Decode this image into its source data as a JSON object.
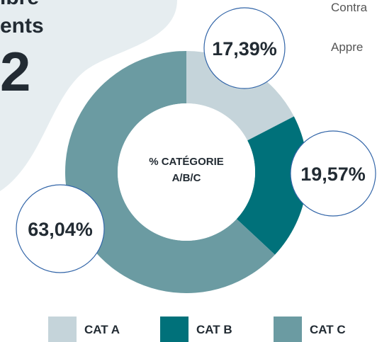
{
  "background_texts": [
    "ibre",
    "ents",
    "2",
    "Contra",
    "Appre"
  ],
  "chart_data": {
    "type": "donut",
    "center_label": [
      "% CATÉGORIE",
      "A/B/C"
    ],
    "categories": [
      "CAT A",
      "CAT B",
      "CAT C"
    ],
    "values": [
      17.39,
      19.57,
      63.04
    ],
    "value_labels": [
      "17,39%",
      "19,57%",
      "63,04%"
    ],
    "colors": [
      "#c5d4da",
      "#00717a",
      "#6b9ba2"
    ],
    "legend": "bottom"
  }
}
